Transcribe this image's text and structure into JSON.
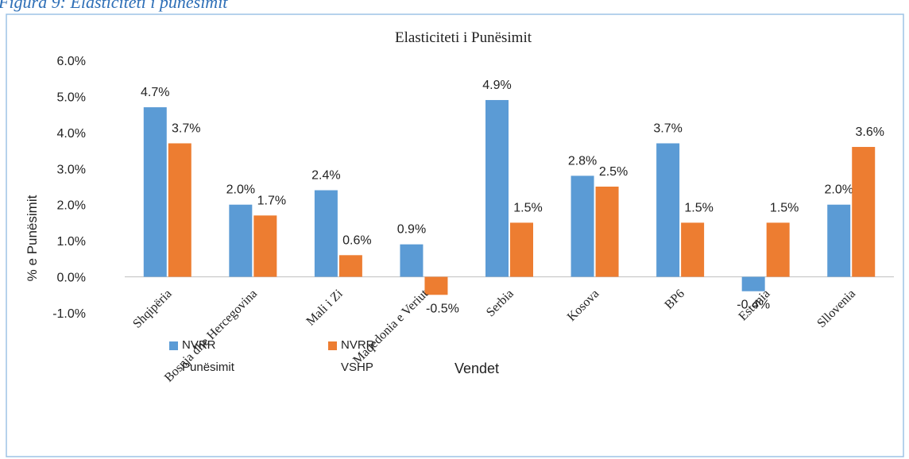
{
  "figure_caption": "Figura 9: Elasticiteti i punësimit",
  "chart_data": {
    "type": "bar",
    "title": "Elasticiteti i Punësimit",
    "x_label": "Vendet",
    "y_label": "% e Punësimit",
    "categories": [
      "Shqipëria",
      "Bosnja dhe Hercegovina",
      "Mali i Zi",
      "Maqedonia e Veriut",
      "Serbia",
      "Kosova",
      "BP6",
      "Estonia",
      "Sllovenia"
    ],
    "series": [
      {
        "name": "NVRR Punësimit",
        "color": "#5b9bd5",
        "values": [
          4.7,
          2.0,
          2.4,
          0.9,
          4.9,
          2.8,
          3.7,
          -0.4,
          2.0
        ],
        "value_labels": [
          "4.7%",
          "2.0%",
          "2.4%",
          "0.9%",
          "4.9%",
          "2.8%",
          "3.7%",
          "-0.4%",
          "2.0%"
        ]
      },
      {
        "name": "NVRR VSHP",
        "color": "#ed7d31",
        "values": [
          3.7,
          1.7,
          0.6,
          -0.5,
          1.5,
          2.5,
          1.5,
          1.5,
          3.6
        ],
        "value_labels": [
          "3.7%",
          "1.7%",
          "0.6%",
          "-0.5%",
          "1.5%",
          "2.5%",
          "1.5%",
          "1.5%",
          "3.6%"
        ]
      }
    ],
    "ylim": [
      -1,
      6
    ],
    "yticks": [
      {
        "value": -1,
        "label": "-1.0%"
      },
      {
        "value": 0,
        "label": "0.0%"
      },
      {
        "value": 1,
        "label": "1.0%"
      },
      {
        "value": 2,
        "label": "2.0%"
      },
      {
        "value": 3,
        "label": "3.0%"
      },
      {
        "value": 4,
        "label": "4.0%"
      },
      {
        "value": 5,
        "label": "5.0%"
      },
      {
        "value": 6,
        "label": "6.0%"
      }
    ],
    "grid": false,
    "legend": "bottom"
  }
}
